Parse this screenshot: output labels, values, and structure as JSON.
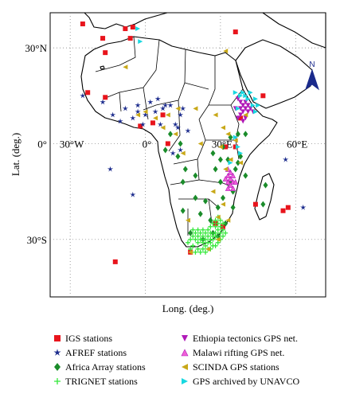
{
  "axes": {
    "xlabel": "Long. (deg.)",
    "ylabel": "Lat. (deg.)",
    "xticks": [
      {
        "value": -30,
        "label": "30°W"
      },
      {
        "value": 0,
        "label": "0°"
      },
      {
        "value": 30,
        "label": "30°E"
      },
      {
        "value": 60,
        "label": "60°E"
      }
    ],
    "yticks": [
      {
        "value": 30,
        "label": "30°N"
      },
      {
        "value": 0,
        "label": "0°"
      },
      {
        "value": -30,
        "label": "30°S"
      }
    ],
    "xlim": [
      -38,
      72
    ],
    "ylim": [
      -48,
      41
    ]
  },
  "north_arrow": {
    "label": "N"
  },
  "legend": [
    {
      "key": "igs",
      "label": "IGS stations",
      "marker": "square",
      "color": "#e8141c"
    },
    {
      "key": "afref",
      "label": "AFREF stations",
      "marker": "star",
      "color": "#1a2a8c"
    },
    {
      "key": "africa_array",
      "label": "Africa Array stations",
      "marker": "diamond",
      "color": "#1a8c2a"
    },
    {
      "key": "trignet",
      "label": "TRIGNET stations",
      "marker": "plus",
      "color": "#33e83a"
    },
    {
      "key": "ethiopia",
      "label": "Ethiopia tectonics GPS net.",
      "marker": "triangle-down",
      "color": "#b01ab8"
    },
    {
      "key": "malawi",
      "label": "Malawi rifting GPS net.",
      "marker": "triangle-up",
      "color": "#f060d8"
    },
    {
      "key": "scinda",
      "label": "SCINDA GPS stations",
      "marker": "triangle-left",
      "color": "#c8a818"
    },
    {
      "key": "unavco",
      "label": "GPS archived by UNAVCO",
      "marker": "triangle-right",
      "color": "#18d8e0"
    }
  ],
  "stations": {
    "igs": [
      [
        -16,
        28.5
      ],
      [
        -17,
        33
      ],
      [
        -23,
        16
      ],
      [
        -25,
        37.5
      ],
      [
        -8,
        36
      ],
      [
        -5,
        36.5
      ],
      [
        -6,
        33
      ],
      [
        -16,
        14.5
      ],
      [
        -2,
        5.5
      ],
      [
        7,
        9
      ],
      [
        3,
        6.5
      ],
      [
        36,
        35
      ],
      [
        38,
        8
      ],
      [
        44,
        -19
      ],
      [
        57,
        -20
      ],
      [
        55,
        -21
      ],
      [
        -12,
        -37
      ],
      [
        32,
        -1
      ],
      [
        31,
        -26
      ],
      [
        28,
        -25
      ],
      [
        18,
        -34
      ],
      [
        9,
        0
      ],
      [
        36,
        -1
      ],
      [
        47,
        15
      ]
    ],
    "afref": [
      [
        -25,
        15
      ],
      [
        -14,
        -8
      ],
      [
        -5,
        -16
      ],
      [
        56,
        -5
      ],
      [
        63,
        -20
      ],
      [
        2,
        13
      ],
      [
        7,
        11
      ],
      [
        10,
        12
      ],
      [
        14,
        9
      ],
      [
        4,
        10
      ],
      [
        0,
        9
      ],
      [
        -3,
        10
      ],
      [
        6,
        6
      ],
      [
        -1,
        6
      ],
      [
        13,
        5
      ],
      [
        17,
        4
      ],
      [
        -8,
        11
      ],
      [
        -5,
        8
      ],
      [
        11,
        -3
      ],
      [
        14,
        -2
      ],
      [
        5,
        14
      ],
      [
        8,
        12
      ],
      [
        -10,
        7
      ],
      [
        -13,
        9
      ],
      [
        -17,
        13
      ],
      [
        12,
        6
      ],
      [
        15,
        11
      ],
      [
        -3,
        12
      ]
    ],
    "africa_array": [
      [
        20,
        -17
      ],
      [
        24,
        -18
      ],
      [
        31,
        -17
      ],
      [
        35,
        -15
      ],
      [
        47,
        -19
      ],
      [
        48,
        -13
      ],
      [
        40,
        -10
      ],
      [
        34,
        -12
      ],
      [
        30,
        -12
      ],
      [
        28,
        -8
      ],
      [
        33,
        -5
      ],
      [
        37,
        -6
      ],
      [
        31,
        -1
      ],
      [
        34,
        2
      ],
      [
        37,
        3
      ],
      [
        27,
        -3
      ],
      [
        20,
        -10
      ],
      [
        16,
        -8
      ],
      [
        13,
        -4
      ],
      [
        10,
        3
      ],
      [
        14,
        0
      ],
      [
        22,
        -22
      ],
      [
        26,
        -24
      ],
      [
        29,
        -20
      ],
      [
        35,
        -20
      ],
      [
        32,
        -25
      ],
      [
        18,
        -28
      ],
      [
        23,
        -30
      ],
      [
        27,
        -28
      ],
      [
        29,
        -29
      ],
      [
        15,
        -21
      ],
      [
        30,
        -5
      ],
      [
        36,
        -8
      ],
      [
        38,
        -4
      ],
      [
        15,
        -12
      ],
      [
        8,
        -2
      ],
      [
        40,
        3
      ]
    ],
    "trignet": [
      [
        18,
        -33
      ],
      [
        19,
        -32
      ],
      [
        20,
        -34
      ],
      [
        21,
        -33
      ],
      [
        22,
        -34
      ],
      [
        23,
        -33
      ],
      [
        24,
        -34
      ],
      [
        25,
        -33
      ],
      [
        26,
        -33
      ],
      [
        27,
        -32
      ],
      [
        28,
        -32
      ],
      [
        29,
        -31
      ],
      [
        30,
        -30
      ],
      [
        31,
        -29
      ],
      [
        32,
        -28
      ],
      [
        31,
        -27
      ],
      [
        30,
        -26
      ],
      [
        29,
        -25
      ],
      [
        28,
        -24
      ],
      [
        27,
        -25
      ],
      [
        26,
        -26
      ],
      [
        25,
        -27
      ],
      [
        24,
        -28
      ],
      [
        23,
        -29
      ],
      [
        22,
        -30
      ],
      [
        21,
        -31
      ],
      [
        20,
        -30
      ],
      [
        19,
        -29
      ],
      [
        18,
        -30
      ],
      [
        17,
        -31
      ],
      [
        26,
        -30
      ],
      [
        27,
        -29
      ],
      [
        28,
        -28
      ],
      [
        29,
        -27
      ],
      [
        30,
        -28
      ],
      [
        25,
        -31
      ],
      [
        24,
        -32
      ],
      [
        23,
        -31
      ],
      [
        22,
        -28
      ],
      [
        21,
        -27
      ],
      [
        29,
        -23
      ],
      [
        30,
        -24
      ],
      [
        31,
        -25
      ],
      [
        28,
        -29
      ],
      [
        27,
        -30
      ],
      [
        26,
        -28
      ],
      [
        25,
        -29
      ],
      [
        24,
        -30
      ],
      [
        20,
        -28
      ],
      [
        19,
        -27
      ],
      [
        28,
        -26
      ],
      [
        29,
        -30
      ],
      [
        21,
        -29
      ],
      [
        23,
        -27
      ],
      [
        26,
        -31
      ]
    ],
    "ethiopia": [
      [
        37,
        14
      ],
      [
        38,
        13
      ],
      [
        39,
        12
      ],
      [
        40,
        11
      ],
      [
        41,
        10
      ],
      [
        39,
        10
      ],
      [
        38,
        9
      ],
      [
        40,
        8
      ],
      [
        37,
        8
      ],
      [
        42,
        11
      ],
      [
        39,
        7
      ],
      [
        41,
        12
      ],
      [
        43,
        10
      ],
      [
        36,
        11
      ],
      [
        38,
        11
      ],
      [
        40,
        13
      ]
    ],
    "malawi": [
      [
        33,
        -10
      ],
      [
        34,
        -11
      ],
      [
        35,
        -12
      ],
      [
        33,
        -12
      ],
      [
        34,
        -13
      ],
      [
        35,
        -14
      ],
      [
        32,
        -11
      ],
      [
        33,
        -14
      ],
      [
        34,
        -9
      ],
      [
        36,
        -12
      ],
      [
        33,
        -8
      ],
      [
        35,
        -10
      ]
    ],
    "scinda": [
      [
        -8,
        24
      ],
      [
        32,
        29
      ],
      [
        -3,
        9
      ],
      [
        0,
        10
      ],
      [
        4,
        8
      ],
      [
        9,
        9
      ],
      [
        13,
        11
      ],
      [
        7,
        5
      ],
      [
        12,
        3
      ],
      [
        20,
        11
      ],
      [
        28,
        9
      ],
      [
        31,
        5
      ],
      [
        33,
        3
      ],
      [
        36,
        1
      ],
      [
        40,
        9
      ],
      [
        30,
        -1
      ],
      [
        34,
        -5
      ],
      [
        38,
        -6
      ],
      [
        32,
        -8
      ],
      [
        22,
        0
      ],
      [
        15,
        -3
      ],
      [
        17,
        -24
      ],
      [
        29,
        -23
      ],
      [
        31,
        -19
      ],
      [
        27,
        -15
      ],
      [
        18,
        -34
      ],
      [
        25,
        -33
      ],
      [
        29,
        -30
      ],
      [
        33,
        -24
      ]
    ],
    "unavco": [
      [
        -3,
        36
      ],
      [
        39,
        16
      ],
      [
        42,
        16
      ],
      [
        44,
        14
      ],
      [
        40,
        15
      ],
      [
        38,
        15
      ],
      [
        43,
        12
      ],
      [
        45,
        12
      ],
      [
        36,
        16
      ],
      [
        41,
        14
      ],
      [
        37,
        11
      ],
      [
        44,
        10
      ],
      [
        34,
        -6
      ],
      [
        -2,
        32
      ],
      [
        38,
        -3
      ],
      [
        36,
        2
      ],
      [
        37,
        -1
      ]
    ]
  }
}
